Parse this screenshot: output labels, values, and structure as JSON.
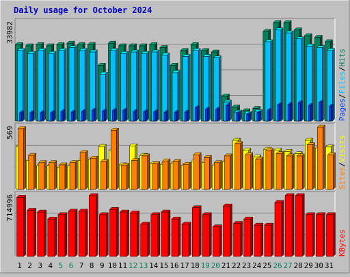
{
  "title": "Daily usage for October 2024",
  "colors": {
    "page_bg": "#c0c0c0",
    "plot_bg": "#c0c0c0",
    "grid": "#808080",
    "title": "#0000c0",
    "hits": "#00805c",
    "files": "#00c0ff",
    "pages": "#0040ff",
    "sites": "#ff8000",
    "visits": "#ffff00",
    "kbytes": "#ff0000",
    "weekend_day": "#00805c",
    "weekday_day": "#000000"
  },
  "chart_data": [
    {
      "type": "bar",
      "panel": "top",
      "y_tick_label": "33982",
      "ylim": [
        0,
        33982
      ],
      "grid": true,
      "right_labels": [
        "Pages",
        "/",
        "Files",
        "/",
        "Hits"
      ],
      "categories": [
        "1",
        "2",
        "3",
        "4",
        "5",
        "6",
        "7",
        "8",
        "9",
        "10",
        "11",
        "12",
        "13",
        "14",
        "15",
        "16",
        "17",
        "18",
        "19",
        "20",
        "21",
        "22",
        "23",
        "24",
        "25",
        "26",
        "27",
        "28",
        "29",
        "30",
        "31"
      ],
      "series": [
        {
          "name": "Hits",
          "values": [
            26000,
            25600,
            26000,
            25600,
            26000,
            26500,
            26000,
            26000,
            19000,
            26500,
            25600,
            25600,
            25600,
            26000,
            25000,
            19000,
            24000,
            26000,
            24000,
            23500,
            8500,
            4800,
            3500,
            4300,
            30500,
            34000,
            33500,
            31000,
            29000,
            28500,
            27000
          ]
        },
        {
          "name": "Files",
          "values": [
            24000,
            23000,
            24000,
            23000,
            24000,
            25000,
            24000,
            23500,
            16000,
            24000,
            23000,
            23500,
            23000,
            23500,
            22500,
            16500,
            22000,
            24000,
            22000,
            21500,
            6500,
            3000,
            2600,
            3200,
            27000,
            31000,
            30000,
            28000,
            25500,
            25000,
            24000
          ]
        },
        {
          "name": "Pages",
          "values": [
            2800,
            2800,
            2800,
            2800,
            3200,
            3000,
            3200,
            3600,
            3300,
            3600,
            3600,
            3200,
            3100,
            3100,
            2900,
            2900,
            3000,
            4500,
            4000,
            4000,
            5300,
            2600,
            2200,
            2800,
            3600,
            5500,
            5600,
            6200,
            5300,
            6300,
            5000
          ]
        }
      ]
    },
    {
      "type": "bar",
      "panel": "middle",
      "y_tick_label": "569",
      "ylim": [
        0,
        569
      ],
      "grid": true,
      "right_labels": [
        "Sites",
        "/",
        "Visits"
      ],
      "categories": [
        "1",
        "2",
        "3",
        "4",
        "5",
        "6",
        "7",
        "8",
        "9",
        "10",
        "11",
        "12",
        "13",
        "14",
        "15",
        "16",
        "17",
        "18",
        "19",
        "20",
        "21",
        "22",
        "23",
        "24",
        "25",
        "26",
        "27",
        "28",
        "29",
        "30",
        "31"
      ],
      "series": [
        {
          "name": "Visits",
          "values": [
            385,
            260,
            215,
            210,
            200,
            210,
            260,
            270,
            385,
            350,
            220,
            390,
            305,
            230,
            225,
            235,
            215,
            255,
            240,
            215,
            250,
            440,
            350,
            290,
            360,
            350,
            340,
            320,
            440,
            370,
            380
          ]
        },
        {
          "name": "Sites",
          "values": [
            545,
            305,
            240,
            240,
            220,
            240,
            330,
            280,
            250,
            530,
            215,
            260,
            300,
            230,
            255,
            250,
            225,
            310,
            285,
            240,
            300,
            410,
            310,
            270,
            350,
            320,
            300,
            300,
            400,
            590,
            310
          ]
        }
      ]
    },
    {
      "type": "bar",
      "panel": "bottom",
      "y_tick_label": "714996",
      "ylim": [
        0,
        714996
      ],
      "grid": true,
      "right_labels": [
        "KBytes"
      ],
      "categories": [
        "1",
        "2",
        "3",
        "4",
        "5",
        "6",
        "7",
        "8",
        "9",
        "10",
        "11",
        "12",
        "13",
        "14",
        "15",
        "16",
        "17",
        "18",
        "19",
        "20",
        "21",
        "22",
        "23",
        "24",
        "25",
        "26",
        "27",
        "28",
        "29",
        "30",
        "31"
      ],
      "series": [
        {
          "name": "KBytes",
          "values": [
            680000,
            530000,
            510000,
            430000,
            480000,
            520000,
            520000,
            700000,
            480000,
            540000,
            510000,
            500000,
            370000,
            480000,
            510000,
            430000,
            370000,
            560000,
            480000,
            340000,
            580000,
            380000,
            430000,
            360000,
            360000,
            620000,
            750000,
            740000,
            480000,
            480000,
            480000
          ]
        }
      ]
    }
  ],
  "x_axis": {
    "day_labels": [
      "1",
      "2",
      "3",
      "4",
      "5",
      "6",
      "7",
      "8",
      "9",
      "10",
      "11",
      "12",
      "13",
      "14",
      "15",
      "16",
      "17",
      "18",
      "19",
      "20",
      "21",
      "22",
      "23",
      "24",
      "25",
      "26",
      "27",
      "28",
      "29",
      "30",
      "31"
    ],
    "weekend_days": [
      "5",
      "6",
      "12",
      "13",
      "19",
      "20",
      "26",
      "27"
    ]
  }
}
